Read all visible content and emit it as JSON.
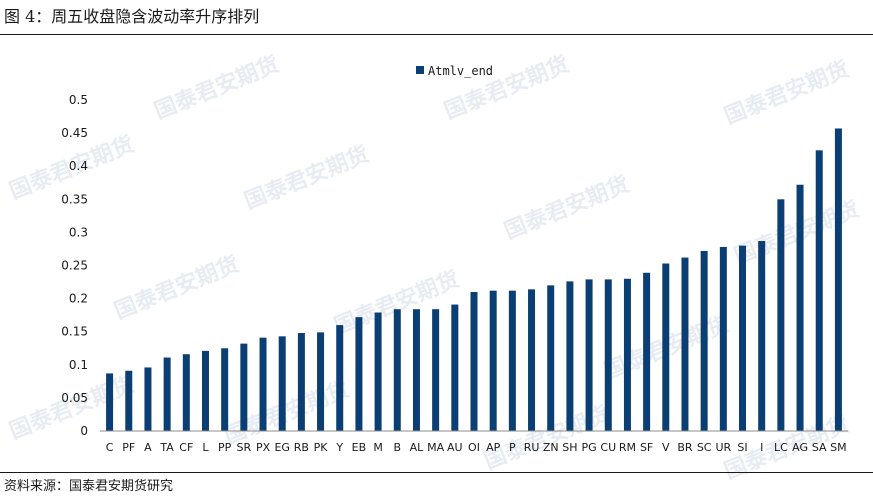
{
  "figure": {
    "title": "图 4：周五收盘隐含波动率升序排列",
    "source": "资料来源：国泰君安期货研究",
    "watermark_text": "国泰君安期货"
  },
  "colors": {
    "bar": "#0b3e73",
    "axis": "#8c8c8c",
    "text": "#1a1a1a"
  },
  "chart_data": {
    "type": "bar",
    "title": "",
    "xlabel": "",
    "ylabel": "",
    "ylim": [
      0,
      0.5
    ],
    "yticks": [
      "0",
      "0.05",
      "0.1",
      "0.15",
      "0.2",
      "0.25",
      "0.3",
      "0.35",
      "0.4",
      "0.45",
      "0.5"
    ],
    "legend_position": "top-center",
    "grid": false,
    "categories": [
      "C",
      "PF",
      "A",
      "TA",
      "CF",
      "L",
      "PP",
      "SR",
      "PX",
      "EG",
      "RB",
      "PK",
      "Y",
      "EB",
      "M",
      "B",
      "AL",
      "MA",
      "AU",
      "OI",
      "AP",
      "P",
      "RU",
      "ZN",
      "SH",
      "PG",
      "CU",
      "RM",
      "SF",
      "V",
      "BR",
      "SC",
      "UR",
      "SI",
      "I",
      "LC",
      "AG",
      "SA",
      "SM"
    ],
    "series": [
      {
        "name": "Atmlv_end",
        "values": [
          0.087,
          0.091,
          0.096,
          0.111,
          0.116,
          0.121,
          0.125,
          0.132,
          0.141,
          0.143,
          0.148,
          0.149,
          0.16,
          0.172,
          0.179,
          0.184,
          0.184,
          0.184,
          0.191,
          0.21,
          0.212,
          0.212,
          0.214,
          0.22,
          0.226,
          0.229,
          0.229,
          0.23,
          0.239,
          0.253,
          0.262,
          0.272,
          0.278,
          0.28,
          0.287,
          0.35,
          0.372,
          0.424,
          0.457
        ]
      }
    ]
  }
}
